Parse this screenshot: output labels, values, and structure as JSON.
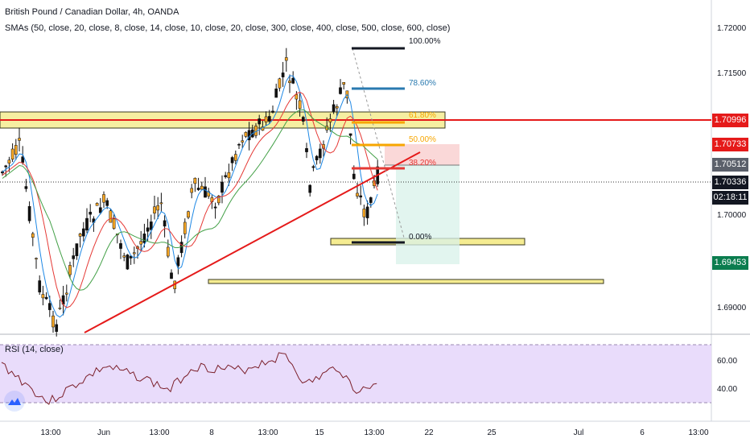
{
  "header": {
    "symbol": "British Pound / Canadian Dollar, 4h, OANDA",
    "sma_legend": "SMAs (50, close, 20, close, 8, close, 14, close, 10, close, 20, close, 300, close, 400, close, 500, close, 600, close)",
    "rsi_legend": "RSI (14, close)"
  },
  "price_axis": {
    "ticks": [
      "1.72000",
      "1.71500",
      "1.70000",
      "1.69000"
    ],
    "tags": {
      "resistance": "1.70996",
      "stop": "1.70733",
      "entry": "1.70512",
      "last": "1.70336",
      "countdown": "02:18:11",
      "target": "1.69453"
    }
  },
  "rsi_axis": {
    "ticks": [
      "60.00",
      "40.00"
    ]
  },
  "time_axis": {
    "labels": [
      "13:00",
      "Jun",
      "13:00",
      "8",
      "13:00",
      "15",
      "13:00",
      "22",
      "25",
      "Jul",
      "6",
      "13:00"
    ]
  },
  "fib_levels": [
    {
      "label": "100.00%",
      "color": "#131722"
    },
    {
      "label": "78.60%",
      "color": "#2a7ab0"
    },
    {
      "label": "61.80%",
      "color": "#f7a600"
    },
    {
      "label": "50.00%",
      "color": "#f7a600"
    },
    {
      "label": "38.20%",
      "color": "#e53935"
    },
    {
      "label": "0.00%",
      "color": "#131722"
    }
  ],
  "colors": {
    "up_candle": "#f6a623",
    "down_candle": "#111111",
    "trendline": "#e51a1a",
    "zone_fill": "#f5ec91",
    "zone_stroke": "#3a3a20",
    "rsi_band": "#e9dcfb",
    "rsi_line": "#7b1f2a",
    "tag_red": "#e51a1a",
    "tag_gray": "#5b606b",
    "tag_black": "#131722",
    "tag_green": "#0b7d4f"
  }
}
